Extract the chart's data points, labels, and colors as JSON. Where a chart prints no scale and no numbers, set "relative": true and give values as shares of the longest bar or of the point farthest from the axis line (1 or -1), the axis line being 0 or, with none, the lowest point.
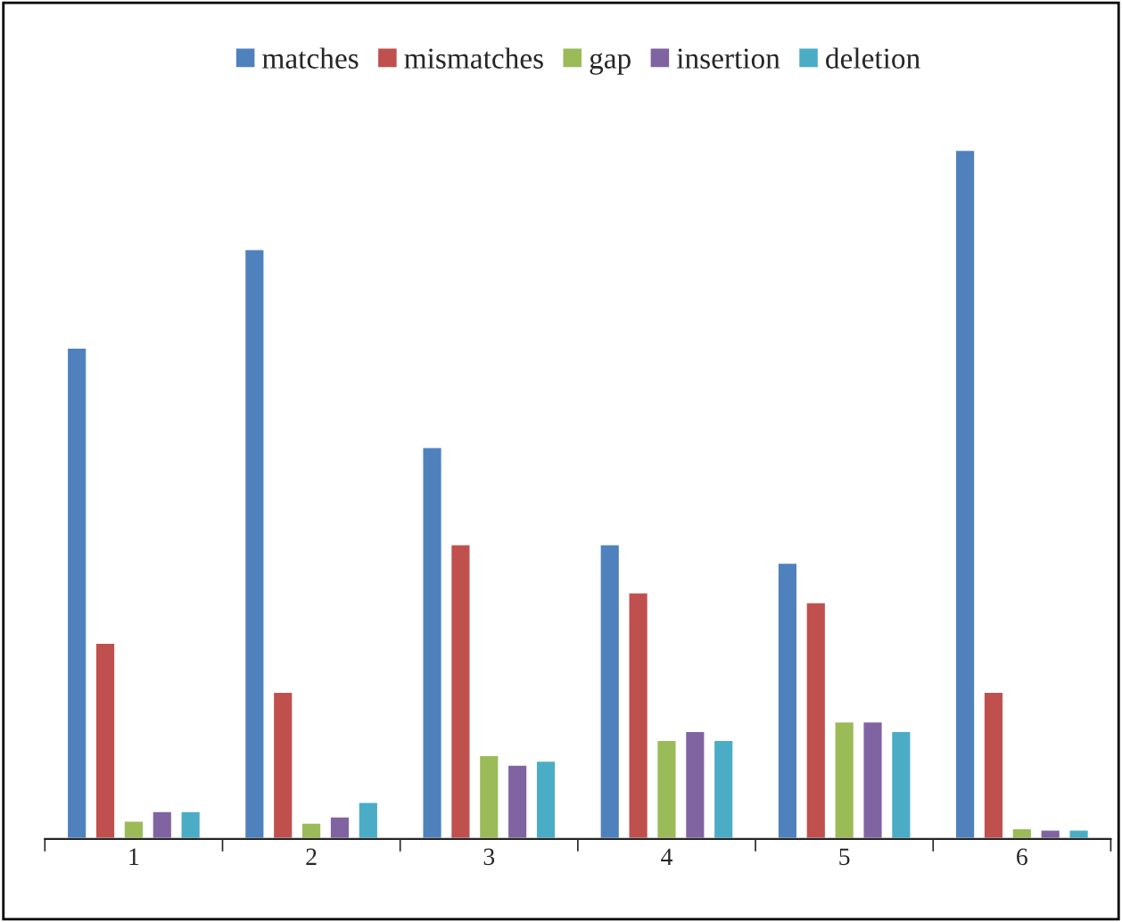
{
  "chart_data": {
    "type": "bar",
    "relative": true,
    "categories": [
      "1",
      "2",
      "3",
      "4",
      "5",
      "6"
    ],
    "series": [
      {
        "name": "matches",
        "color": "#4f81bd",
        "values": [
          0.713,
          0.856,
          0.569,
          0.428,
          0.401,
          1
        ]
      },
      {
        "name": "mismatches",
        "color": "#c0504d",
        "values": [
          0.285,
          0.214,
          0.428,
          0.358,
          0.344,
          0.214
        ]
      },
      {
        "name": "gap",
        "color": "#9bbb59",
        "values": [
          0.027,
          0.024,
          0.122,
          0.144,
          0.171,
          0.016
        ]
      },
      {
        "name": "insertion",
        "color": "#8064a2",
        "values": [
          0.041,
          0.033,
          0.108,
          0.157,
          0.171,
          0.014
        ]
      },
      {
        "name": "deletion",
        "color": "#4bacc6",
        "values": [
          0.041,
          0.054,
          0.114,
          0.144,
          0.157,
          0.014
        ]
      }
    ],
    "legend": "top",
    "grid": false
  }
}
